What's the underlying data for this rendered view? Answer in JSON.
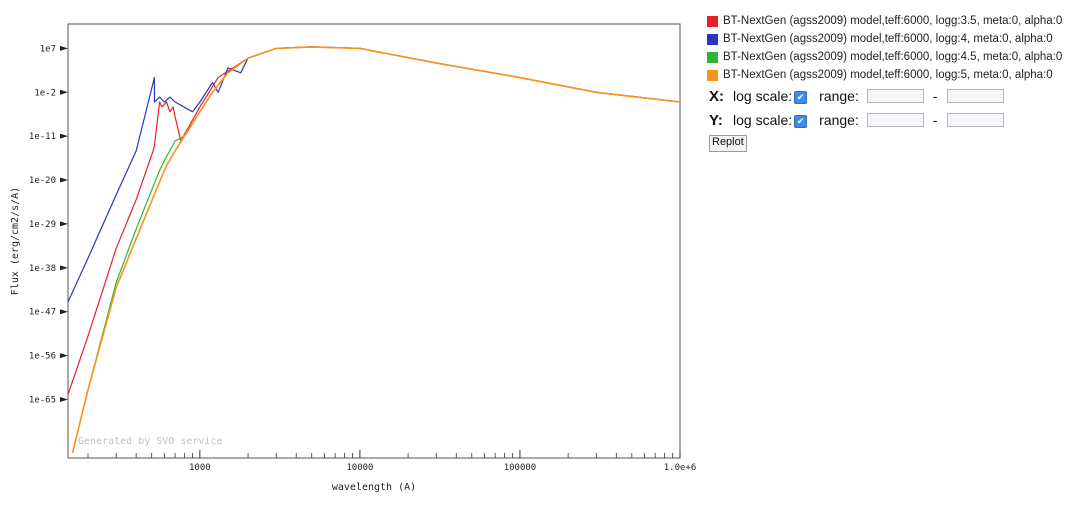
{
  "chart_data": {
    "type": "line",
    "xlabel": "wavelength (A)",
    "ylabel": "Flux (erg/cm2/s/A)",
    "xscale": "log",
    "yscale": "log",
    "xlim": [
      150,
      1000000
    ],
    "ylim": [
      1e-77,
      1000000000000.0
    ],
    "x_ticks": [
      {
        "value": 1000,
        "label": "1000"
      },
      {
        "value": 10000,
        "label": "10000"
      },
      {
        "value": 100000,
        "label": "100000"
      },
      {
        "value": 1000000,
        "label": "1.0e+6"
      }
    ],
    "y_ticks": [
      {
        "value": 10000000.0,
        "label": "1e7"
      },
      {
        "value": 0.01,
        "label": "1e-2"
      },
      {
        "value": 1e-11,
        "label": "1e-11"
      },
      {
        "value": 1e-20,
        "label": "1e-20"
      },
      {
        "value": 1e-29,
        "label": "1e-29"
      },
      {
        "value": 1e-38,
        "label": "1e-38"
      },
      {
        "value": 1e-47,
        "label": "1e-47"
      },
      {
        "value": 1e-56,
        "label": "1e-56"
      },
      {
        "value": 1e-65,
        "label": "1e-65"
      }
    ],
    "watermark": "Generated by SVO service",
    "grid": false,
    "legend_position": "right",
    "series": [
      {
        "name": "BT-NextGen (agss2009) model,teff:6000, logg:3.5, meta:0, alpha:0",
        "color": "#e8202a",
        "x": [
          150,
          200,
          300,
          400,
          510,
          520,
          560,
          580,
          620,
          650,
          680,
          700,
          760,
          1000,
          1300,
          2000,
          3000,
          5000,
          10000,
          30000,
          100000,
          300000,
          1000000
        ],
        "y": [
          1e-64,
          1e-52,
          1e-34,
          1e-24,
          1e-14,
          1e-13,
          0.0001,
          1e-05,
          0.0001,
          1e-06,
          1e-05,
          1e-07,
          1e-12,
          1e-05,
          10.0,
          100000.0,
          10000000.0,
          20000000.0,
          10000000.0,
          10000.0,
          10.0,
          0.01,
          0.0001
        ]
      },
      {
        "name": "BT-NextGen (agss2009) model,teff:6000, logg:4, meta:0, alpha:0",
        "color": "#2b35c2",
        "x": [
          150,
          200,
          300,
          400,
          520,
          521,
          560,
          600,
          650,
          700,
          900,
          1000,
          1200,
          1300,
          1500,
          1800,
          2000,
          3000,
          5000,
          10000,
          30000,
          100000,
          300000,
          1000000
        ],
        "y": [
          1e-45,
          1e-36,
          1e-23,
          1e-14,
          10.0,
          0.0001,
          0.001,
          0.0001,
          0.001,
          0.0001,
          1e-06,
          0.0001,
          1.0,
          0.01,
          1000.0,
          100.0,
          100000.0,
          10000000.0,
          20000000.0,
          10000000.0,
          10000.0,
          10.0,
          0.01,
          0.0001
        ]
      },
      {
        "name": "BT-NextGen (agss2009) model,teff:6000, logg:4.5, meta:0, alpha:0",
        "color": "#2fb43a",
        "x": [
          160,
          200,
          300,
          400,
          560,
          600,
          700,
          800,
          1000,
          1200,
          1500,
          2000,
          3000,
          5000,
          10000,
          30000,
          100000,
          300000,
          1000000
        ],
        "y": [
          1e-76,
          1e-63,
          1e-41,
          1e-30,
          1e-18,
          1e-16,
          1e-12,
          1e-11,
          1e-06,
          0.01,
          100.0,
          100000.0,
          10000000.0,
          20000000.0,
          10000000.0,
          10000.0,
          10.0,
          0.01,
          0.0001
        ]
      },
      {
        "name": "BT-NextGen (agss2009) model,teff:6000, logg:5, meta:0, alpha:0",
        "color": "#f7931e",
        "x": [
          160,
          200,
          300,
          400,
          550,
          600,
          620,
          700,
          800,
          1000,
          1200,
          1500,
          2000,
          3000,
          5000,
          10000,
          30000,
          100000,
          300000,
          1000000
        ],
        "y": [
          1e-76,
          1e-63,
          1e-42,
          1e-32,
          1e-21,
          1e-18,
          1e-17,
          1e-14,
          1e-11,
          1e-06,
          0.01,
          100.0,
          100000.0,
          10000000.0,
          20000000.0,
          10000000.0,
          10000.0,
          10.0,
          0.01,
          0.0001
        ]
      }
    ]
  },
  "controls": {
    "x_axis_label": "X:",
    "y_axis_label": "Y:",
    "log_scale_label": "log scale:",
    "range_label": "range:",
    "dash": "-",
    "x_log_checked": true,
    "y_log_checked": true,
    "x_range_min": "",
    "x_range_max": "",
    "y_range_min": "",
    "y_range_max": "",
    "replot_label": "Replot"
  }
}
